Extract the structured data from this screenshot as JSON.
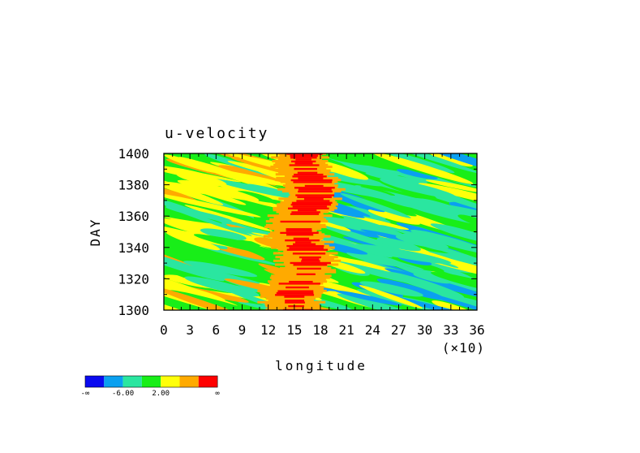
{
  "chart_data": {
    "type": "heatmap",
    "title": "u-velocity",
    "xlabel": "longitude",
    "x_scale_note": "(×10)",
    "ylabel": "DAY",
    "xlim": [
      0,
      36
    ],
    "ylim": [
      1300,
      1400
    ],
    "x_ticks": [
      "0",
      "3",
      "6",
      "9",
      "12",
      "15",
      "18",
      "21",
      "24",
      "27",
      "30",
      "33",
      "36"
    ],
    "y_ticks": [
      "1300",
      "1320",
      "1340",
      "1360",
      "1380",
      "1400"
    ],
    "colorbar": {
      "colors": [
        "#0a0af0",
        "#0aa0f0",
        "#2ae6a0",
        "#18ee18",
        "#ffff0a",
        "#ffaa00",
        "#ff0000"
      ],
      "labels": [
        "-∞",
        "-6.00",
        "2.00",
        "∞"
      ]
    },
    "features": {
      "background_band": "green",
      "max_band_center_longitude_x10": 16.5,
      "max_band_lon_range_x10": [
        12,
        18.5
      ],
      "max_band_color": "red",
      "east_side_band": "cyan",
      "tilt": "diagonal streaks sloping down to the right"
    }
  }
}
